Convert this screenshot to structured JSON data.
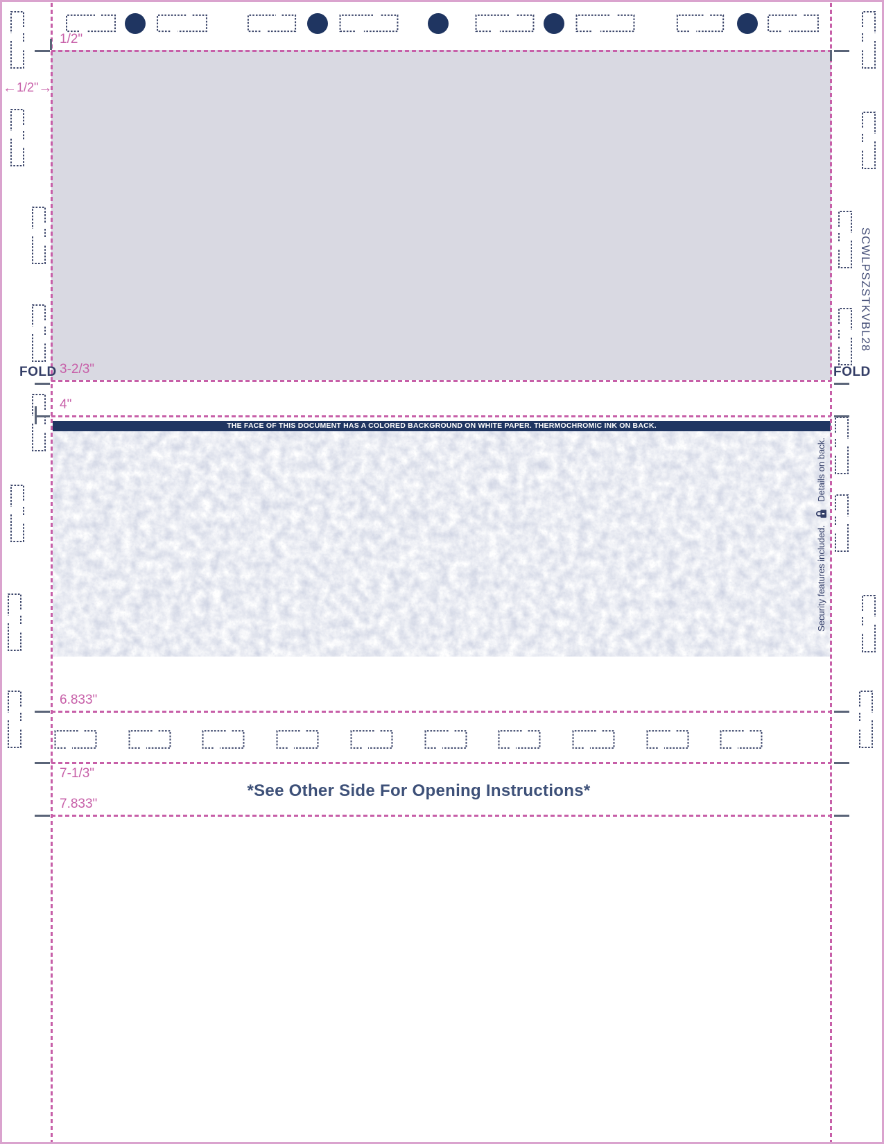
{
  "banner": {
    "text": "THE FACE OF THIS DOCUMENT HAS A COLORED BACKGROUND ON WHITE PAPER. THERMOCHROMIC INK ON BACK."
  },
  "labels": {
    "fold": "FOLD",
    "margin_width": "1/2\"",
    "arrow_left": "←",
    "arrow_right": "→"
  },
  "measurements": {
    "items": [
      {
        "label": "1/2\""
      },
      {
        "label": "3-2/3\""
      },
      {
        "label": "4\""
      },
      {
        "label": "6.833\""
      },
      {
        "label": "7-1/3\""
      },
      {
        "label": "7.833\""
      }
    ]
  },
  "security": {
    "lower_note": "Security features included.",
    "lock_icon": "padlock-icon",
    "upper_note": "Details on back."
  },
  "footer": {
    "opening_instructions": "*See Other Side For Opening Instructions*"
  },
  "side_code": {
    "text": "SCWLPSZSTKVBL28"
  },
  "colors": {
    "pink_dashed": "#c75fa8",
    "pink_solid": "#daa3ce",
    "navy": "#1f3561",
    "panel_gray": "#d9d9e2",
    "slate_text": "#3d5078",
    "tick_gray": "#5a6478",
    "pattern_tint": "#9aa3c1"
  }
}
